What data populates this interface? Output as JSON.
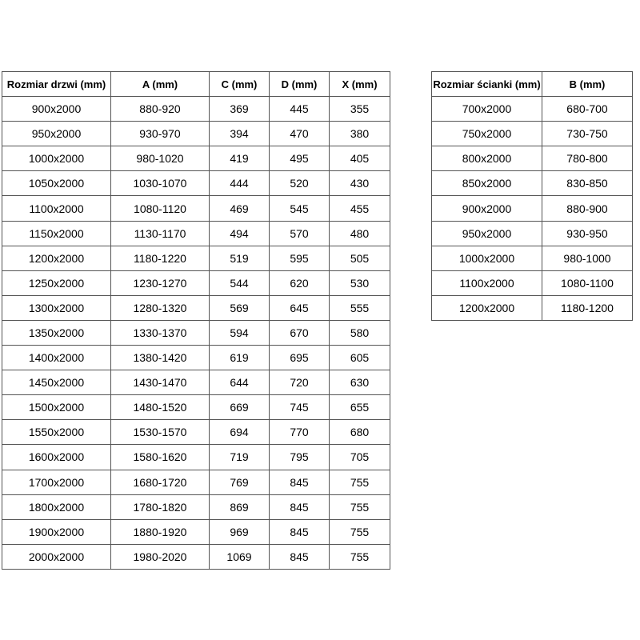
{
  "doors_table": {
    "headers": [
      "Rozmiar drzwi (mm)",
      "A (mm)",
      "C (mm)",
      "D (mm)",
      "X (mm)"
    ],
    "rows": [
      [
        "900x2000",
        "880-920",
        "369",
        "445",
        "355"
      ],
      [
        "950x2000",
        "930-970",
        "394",
        "470",
        "380"
      ],
      [
        "1000x2000",
        "980-1020",
        "419",
        "495",
        "405"
      ],
      [
        "1050x2000",
        "1030-1070",
        "444",
        "520",
        "430"
      ],
      [
        "1100x2000",
        "1080-1120",
        "469",
        "545",
        "455"
      ],
      [
        "1150x2000",
        "1130-1170",
        "494",
        "570",
        "480"
      ],
      [
        "1200x2000",
        "1180-1220",
        "519",
        "595",
        "505"
      ],
      [
        "1250x2000",
        "1230-1270",
        "544",
        "620",
        "530"
      ],
      [
        "1300x2000",
        "1280-1320",
        "569",
        "645",
        "555"
      ],
      [
        "1350x2000",
        "1330-1370",
        "594",
        "670",
        "580"
      ],
      [
        "1400x2000",
        "1380-1420",
        "619",
        "695",
        "605"
      ],
      [
        "1450x2000",
        "1430-1470",
        "644",
        "720",
        "630"
      ],
      [
        "1500x2000",
        "1480-1520",
        "669",
        "745",
        "655"
      ],
      [
        "1550x2000",
        "1530-1570",
        "694",
        "770",
        "680"
      ],
      [
        "1600x2000",
        "1580-1620",
        "719",
        "795",
        "705"
      ],
      [
        "1700x2000",
        "1680-1720",
        "769",
        "845",
        "755"
      ],
      [
        "1800x2000",
        "1780-1820",
        "869",
        "845",
        "755"
      ],
      [
        "1900x2000",
        "1880-1920",
        "969",
        "845",
        "755"
      ],
      [
        "2000x2000",
        "1980-2020",
        "1069",
        "845",
        "755"
      ]
    ]
  },
  "wall_table": {
    "headers": [
      "Rozmiar ścianki (mm)",
      "B (mm)"
    ],
    "rows": [
      [
        "700x2000",
        "680-700"
      ],
      [
        "750x2000",
        "730-750"
      ],
      [
        "800x2000",
        "780-800"
      ],
      [
        "850x2000",
        "830-850"
      ],
      [
        "900x2000",
        "880-900"
      ],
      [
        "950x2000",
        "930-950"
      ],
      [
        "1000x2000",
        "980-1000"
      ],
      [
        "1100x2000",
        "1080-1100"
      ],
      [
        "1200x2000",
        "1180-1200"
      ]
    ]
  }
}
